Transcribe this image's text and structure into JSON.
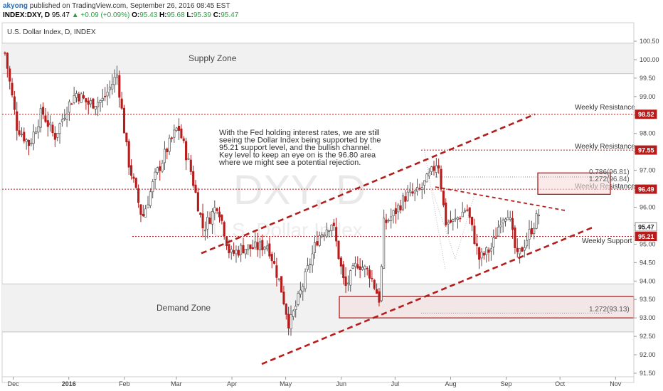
{
  "header": {
    "author": "akyong",
    "published_text": "published on TradingView.com, September 26, 2016 08:45 EST",
    "symbol": "INDEX:DXY, D",
    "last": "95.47",
    "change": "▲ +0.09 (+0.09%)",
    "open_label": "O:",
    "open": "95.43",
    "high_label": "H:",
    "high": "95.68",
    "low_label": "L:",
    "low": "95.39",
    "close_label": "C:",
    "close": "95.47"
  },
  "chart_data": {
    "type": "candlestick",
    "title": "U.S. Dollar Index, D, INDEX",
    "watermark_symbol": "DXY, D",
    "watermark_name": "U.S. Dollar Index",
    "ylim": [
      91.4,
      100.75
    ],
    "y_ticks": [
      "100.50",
      "100.00",
      "99.50",
      "99.00",
      "98.50",
      "98.00",
      "97.50",
      "97.00",
      "96.50",
      "96.00",
      "95.50",
      "95.00",
      "94.50",
      "94.00",
      "93.50",
      "93.00",
      "92.50",
      "92.00",
      "91.50"
    ],
    "x_ticks": [
      "Dec",
      "2016",
      "Feb",
      "Mar",
      "Apr",
      "May",
      "Jun",
      "Jul",
      "Aug",
      "Sep",
      "Oct",
      "Nov"
    ],
    "x_ticks_bold": [
      "2016"
    ],
    "price_tags": [
      {
        "label": "98.52",
        "value": 98.52,
        "color": "#b71c1c"
      },
      {
        "label": "97.55",
        "value": 97.55,
        "color": "#b71c1c"
      },
      {
        "label": "96.49",
        "value": 96.49,
        "color": "#b71c1c"
      },
      {
        "label": "95.47",
        "value": 95.47,
        "color": "#ffffff"
      },
      {
        "label": "95.21",
        "value": 95.21,
        "color": "#b71c1c"
      }
    ],
    "levels": [
      {
        "label": "Weekly Resistance",
        "value": 98.52
      },
      {
        "label": "Weekly Resistance",
        "value": 97.55
      },
      {
        "label": "Weekly Resistance",
        "value": 96.49
      },
      {
        "label": "Weekly Support",
        "value": 95.21
      }
    ],
    "zones": [
      {
        "label": "Supply Zone",
        "from": 99.62,
        "to": 100.45
      },
      {
        "label": "Demand Zone",
        "from": 92.62,
        "to": 93.92
      }
    ],
    "fib_labels": [
      {
        "label": "0.786(96.81)",
        "value": 96.81
      },
      {
        "label": "1.272(96.84)",
        "value": 96.84
      },
      {
        "label": "1.272(93.13)",
        "value": 93.13
      }
    ],
    "note": [
      "With the Fed holding interest rates, we are still",
      "seeing the Dollar Index being supported by the",
      "95.21 support level, and the bullish channel.",
      "Key level to keep an eye on is the 96.80 area",
      "where we might see a potential rejection."
    ],
    "series": [
      {
        "path": [
          {
            "date": "2015-11-26",
            "close": 100.3
          },
          {
            "date": "2015-12-03",
            "close": 98.2
          },
          {
            "date": "2015-12-10",
            "close": 97.7
          },
          {
            "date": "2015-12-17",
            "close": 98.6
          },
          {
            "date": "2015-12-24",
            "close": 97.9
          },
          {
            "date": "2015-12-31",
            "close": 98.7
          },
          {
            "date": "2016-01-05",
            "close": 99.1
          },
          {
            "date": "2016-01-12",
            "close": 98.8
          },
          {
            "date": "2016-01-20",
            "close": 98.9
          },
          {
            "date": "2016-01-28",
            "close": 99.6
          },
          {
            "date": "2016-02-03",
            "close": 97.3
          },
          {
            "date": "2016-02-11",
            "close": 95.7
          },
          {
            "date": "2016-02-18",
            "close": 96.8
          },
          {
            "date": "2016-02-25",
            "close": 97.6
          },
          {
            "date": "2016-03-02",
            "close": 98.2
          },
          {
            "date": "2016-03-09",
            "close": 97.0
          },
          {
            "date": "2016-03-16",
            "close": 95.4
          },
          {
            "date": "2016-03-24",
            "close": 96.1
          },
          {
            "date": "2016-03-31",
            "close": 94.7
          },
          {
            "date": "2016-04-07",
            "close": 94.9
          },
          {
            "date": "2016-04-14",
            "close": 94.9
          },
          {
            "date": "2016-04-21",
            "close": 95.0
          },
          {
            "date": "2016-04-28",
            "close": 93.9
          },
          {
            "date": "2016-05-03",
            "close": 92.8
          },
          {
            "date": "2016-05-10",
            "close": 93.8
          },
          {
            "date": "2016-05-19",
            "close": 95.2
          },
          {
            "date": "2016-05-27",
            "close": 95.6
          },
          {
            "date": "2016-06-03",
            "close": 93.8
          },
          {
            "date": "2016-06-10",
            "close": 94.5
          },
          {
            "date": "2016-06-17",
            "close": 94.2
          },
          {
            "date": "2016-06-23",
            "close": 93.4
          },
          {
            "date": "2016-06-24",
            "close": 95.5
          },
          {
            "date": "2016-06-30",
            "close": 95.8
          },
          {
            "date": "2016-07-07",
            "close": 96.3
          },
          {
            "date": "2016-07-14",
            "close": 96.4
          },
          {
            "date": "2016-07-21",
            "close": 96.9
          },
          {
            "date": "2016-07-25",
            "close": 97.3
          },
          {
            "date": "2016-07-29",
            "close": 95.6
          },
          {
            "date": "2016-08-03",
            "close": 95.6
          },
          {
            "date": "2016-08-10",
            "close": 96.0
          },
          {
            "date": "2016-08-17",
            "close": 94.6
          },
          {
            "date": "2016-08-24",
            "close": 94.9
          },
          {
            "date": "2016-08-29",
            "close": 95.7
          },
          {
            "date": "2016-09-02",
            "close": 95.9
          },
          {
            "date": "2016-09-07",
            "close": 94.6
          },
          {
            "date": "2016-09-14",
            "close": 95.3
          },
          {
            "date": "2016-09-20",
            "close": 95.9
          },
          {
            "date": "2016-09-23",
            "close": 95.47
          }
        ]
      }
    ]
  }
}
